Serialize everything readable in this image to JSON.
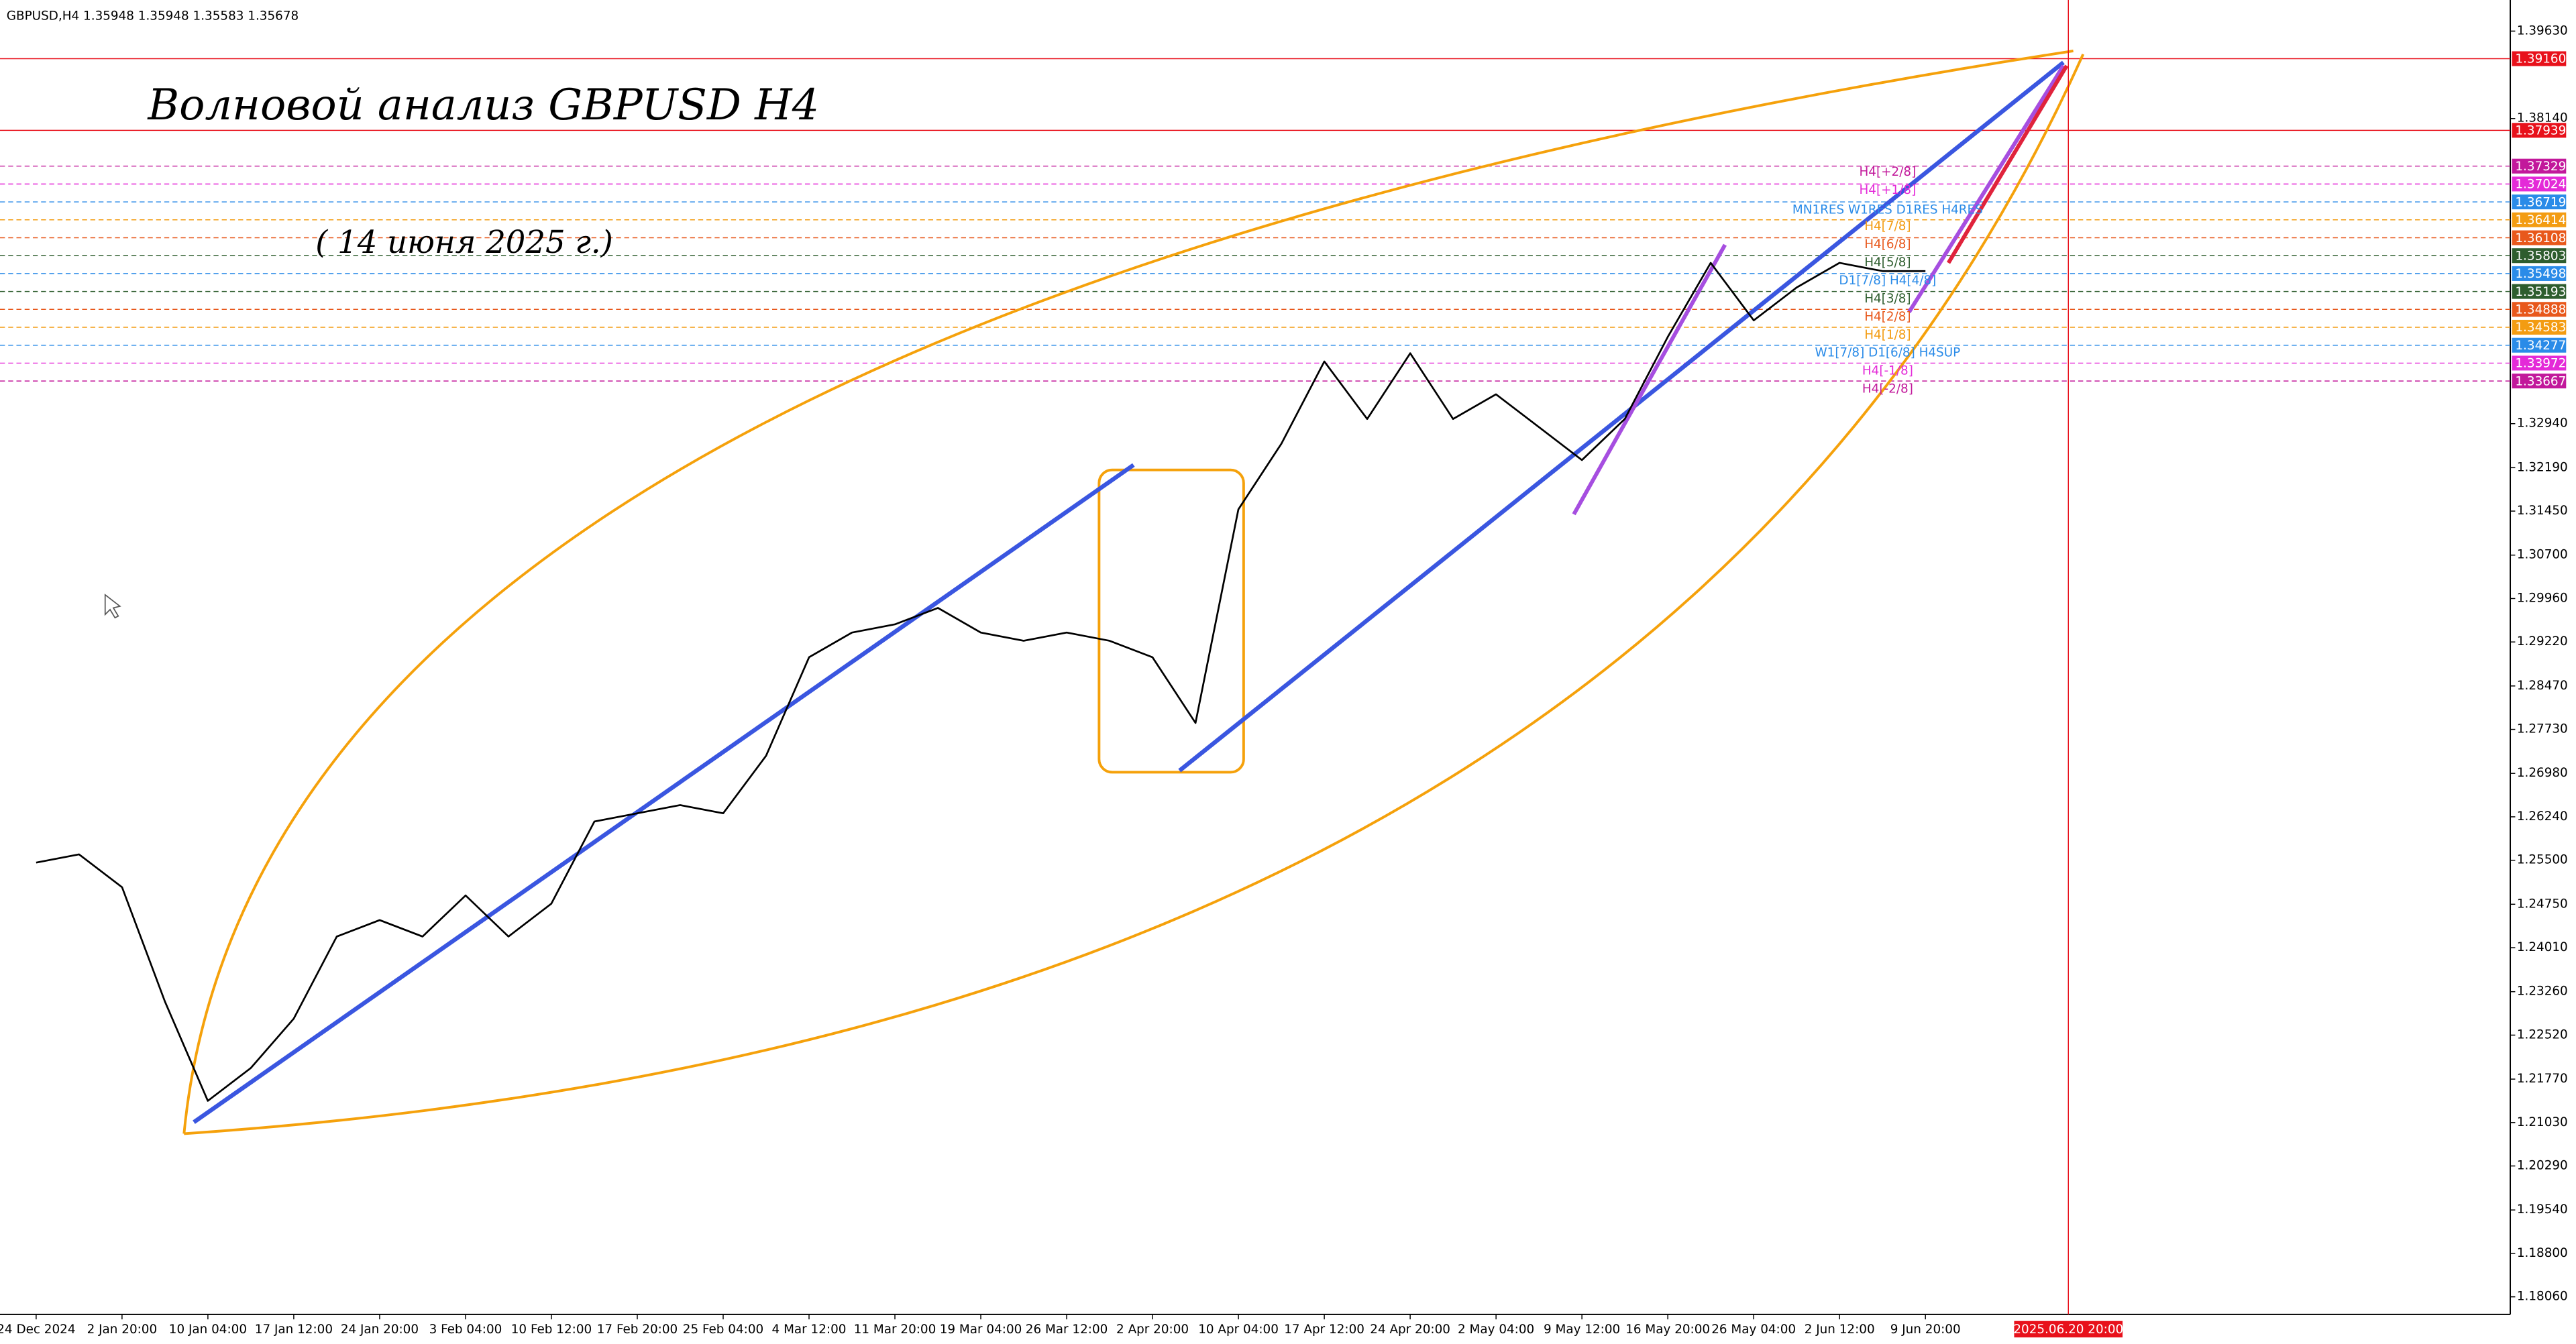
{
  "chart_data": {
    "type": "line",
    "header": "GBPUSD,H4  1.35948 1.35948 1.35583 1.35678",
    "title": "Волновой анализ GBPUSD H4",
    "subtitle": "( 14 июня 2025 г.)",
    "categories": [
      "24 Dec 2024",
      null,
      "2 Jan 20:00",
      null,
      "10 Jan 04:00",
      null,
      "17 Jan 12:00",
      null,
      "24 Jan 20:00",
      null,
      "3 Feb 04:00",
      null,
      "10 Feb 12:00",
      null,
      "17 Feb 20:00",
      null,
      "25 Feb 04:00",
      null,
      "4 Mar 12:00",
      null,
      "11 Mar 20:00",
      null,
      "19 Mar 04:00",
      null,
      "26 Mar 12:00",
      null,
      "2 Apr 20:00",
      null,
      "10 Apr 04:00",
      null,
      "17 Apr 12:00",
      null,
      "24 Apr 20:00",
      null,
      "2 May 04:00",
      null,
      "9 May 12:00",
      null,
      "16 May 20:00",
      null,
      "26 May 04:00",
      null,
      "2 Jun 12:00",
      null,
      "9 Jun 20:00"
    ],
    "series": [
      {
        "name": "GBPUSD,H4",
        "color": "#000000",
        "values": [
          1.2546,
          1.256,
          1.2504,
          1.2309,
          1.214,
          1.2196,
          1.228,
          1.242,
          1.2448,
          1.242,
          1.249,
          1.242,
          1.2476,
          1.2616,
          1.263,
          1.2644,
          1.263,
          1.2728,
          1.2896,
          1.2938,
          1.2952,
          1.298,
          1.2938,
          1.2924,
          1.2938,
          1.2924,
          1.2896,
          1.2784,
          1.3148,
          1.326,
          1.34,
          1.3302,
          1.3414,
          1.3302,
          1.3344,
          1.3288,
          1.3232,
          1.3302,
          1.3442,
          1.3568,
          1.347,
          1.3526,
          1.3568,
          1.3554,
          1.3554
        ]
      }
    ],
    "ylim": [
      1.1776,
      1.4016
    ],
    "yticks": [
      1.3963,
      1.3814,
      1.3294,
      1.3219,
      1.3145,
      1.307,
      1.2996,
      1.2922,
      1.2847,
      1.2773,
      1.2698,
      1.2624,
      1.255,
      1.2475,
      1.2401,
      1.2326,
      1.2252,
      1.2177,
      1.2103,
      1.2029,
      1.1954,
      1.188,
      1.1806
    ],
    "ytick_labels": [
      "1.39630",
      "1.38140",
      "1.32940",
      "1.32190",
      "1.31450",
      "1.30700",
      "1.29960",
      "1.29220",
      "1.28470",
      "1.27730",
      "1.26980",
      "1.26240",
      "1.25500",
      "1.24750",
      "1.24010",
      "1.23260",
      "1.22520",
      "1.21770",
      "1.21030",
      "1.20290",
      "1.19540",
      "1.18800",
      "1.18060"
    ],
    "grid": false,
    "levels": [
      {
        "value": 1.3916,
        "label": "1.39160",
        "color": "#e8111b"
      },
      {
        "value": 1.37939,
        "label": "1.37939",
        "color": "#e8111b"
      },
      {
        "value": 1.37329,
        "label": "1.37329",
        "color": "#c2189b"
      },
      {
        "value": 1.37024,
        "label": "1.37024",
        "color": "#e42ad8"
      },
      {
        "value": 1.36719,
        "label": "1.36719",
        "color": "#2a8be8"
      },
      {
        "value": 1.36414,
        "label": "1.36414",
        "color": "#f39c12"
      },
      {
        "value": 1.36108,
        "label": "1.36108",
        "color": "#e8581b"
      },
      {
        "value": 1.35803,
        "label": "1.35803",
        "color": "#2e5d2e"
      },
      {
        "value": 1.35498,
        "label": "1.35498",
        "color": "#2a8be8"
      },
      {
        "value": 1.35193,
        "label": "1.35193",
        "color": "#2e5d2e"
      },
      {
        "value": 1.34888,
        "label": "1.34888",
        "color": "#e8581b"
      },
      {
        "value": 1.34583,
        "label": "1.34583",
        "color": "#f39c12"
      },
      {
        "value": 1.34277,
        "label": "1.34277",
        "color": "#2a8be8"
      },
      {
        "value": 1.33972,
        "label": "1.33972",
        "color": "#e42ad8"
      },
      {
        "value": 1.33667,
        "label": "1.33667",
        "color": "#c2189b"
      }
    ],
    "annotations": [
      {
        "text": "H4[+2/8]",
        "color": "#c2189b"
      },
      {
        "text": "H4[+1/8]",
        "color": "#e42ad8"
      },
      {
        "text": "MN1RES W1RES D1RES H4RES",
        "color": "#2a8be8"
      },
      {
        "text": "H4[7/8]",
        "color": "#f39c12"
      },
      {
        "text": "H4[6/8]",
        "color": "#e8581b"
      },
      {
        "text": "H4[5/8]",
        "color": "#2e5d2e"
      },
      {
        "text": "D1[7/8] H4[4/8]",
        "color": "#2a8be8"
      },
      {
        "text": "H4[3/8]",
        "color": "#2e5d2e"
      },
      {
        "text": "H4[2/8]",
        "color": "#e8581b"
      },
      {
        "text": "H4[1/8]",
        "color": "#f39c12"
      },
      {
        "text": "W1[7/8] D1[6/8] H4SUP",
        "color": "#2a8be8"
      },
      {
        "text": "H4[-1/8]",
        "color": "#e42ad8"
      },
      {
        "text": "H4[-2/8]",
        "color": "#c2189b"
      }
    ],
    "cursor_label": "2025.06.20 20:00"
  }
}
